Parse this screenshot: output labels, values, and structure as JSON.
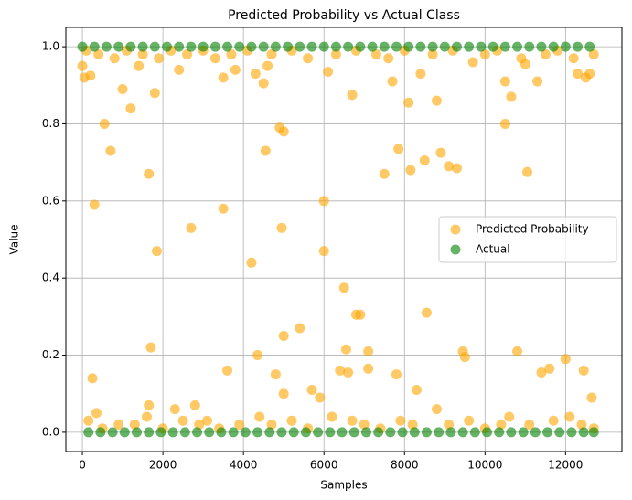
{
  "chart_data": {
    "type": "scatter",
    "title": "Predicted Probability vs Actual Class",
    "x_label": "Samples",
    "y_label": "Value",
    "xlim": [
      -410,
      13400
    ],
    "ylim": [
      -0.05,
      1.05
    ],
    "xticks": [
      0,
      2000,
      4000,
      6000,
      8000,
      10000,
      12000
    ],
    "yticks": [
      {
        "value": 0,
        "label": "0.0"
      },
      {
        "value": 0.2,
        "label": "0.2"
      },
      {
        "value": 0.4,
        "label": "0.4"
      },
      {
        "value": 0.6,
        "label": "0.6"
      },
      {
        "value": 0.8,
        "label": "0.8"
      },
      {
        "value": 1,
        "label": "1.0"
      }
    ],
    "grid": true,
    "legend": "center right",
    "series": [
      {
        "name": "Predicted Probability",
        "color": "orange",
        "x": [
          0,
          50,
          200,
          250,
          300,
          550,
          700,
          350,
          1000,
          1200,
          1400,
          1650,
          1700,
          1800,
          1850,
          1650,
          2300,
          2400,
          2700,
          2800,
          3500,
          3500,
          3600,
          3800,
          4200,
          4300,
          4350,
          4500,
          4550,
          4600,
          4800,
          4900,
          4950,
          5000,
          5000,
          5000,
          5400,
          5700,
          5900,
          6000,
          6000,
          6100,
          6400,
          6500,
          6550,
          6600,
          6700,
          6800,
          6900,
          7100,
          7100,
          7500,
          7700,
          7800,
          7850,
          8100,
          8150,
          8300,
          8400,
          8500,
          8550,
          8800,
          8900,
          9100,
          9300,
          9450,
          9500,
          10500,
          10500,
          10650,
          10800,
          11000,
          11050,
          11300,
          11400,
          11600,
          12000,
          12300,
          12450,
          12500,
          12600,
          12650,
          100,
          400,
          800,
          1100,
          1500,
          1900,
          2200,
          2600,
          3000,
          3300,
          3700,
          4100,
          4700,
          5200,
          5600,
          6300,
          6800,
          7300,
          7600,
          8000,
          8700,
          9200,
          9700,
          10000,
          10300,
          10900,
          11500,
          11800,
          12200,
          12700,
          150,
          500,
          900,
          1300,
          1600,
          2000,
          2500,
          2900,
          3100,
          3400,
          3900,
          4400,
          4700,
          5200,
          5600,
          6200,
          6700,
          7000,
          7400,
          7900,
          8200,
          8800,
          9100,
          9600,
          10000,
          10400,
          10600,
          11100,
          11700,
          12100,
          12400,
          12700
        ],
        "values": [
          0.95,
          0.92,
          0.925,
          0.14,
          0.59,
          0.8,
          0.73,
          0.05,
          0.89,
          0.84,
          0.95,
          0.67,
          0.22,
          0.88,
          0.47,
          0.07,
          0.06,
          0.94,
          0.53,
          0.07,
          0.58,
          0.92,
          0.16,
          0.94,
          0.44,
          0.93,
          0.2,
          0.905,
          0.73,
          0.95,
          0.15,
          0.79,
          0.53,
          0.78,
          0.25,
          0.1,
          0.27,
          0.11,
          0.09,
          0.6,
          0.47,
          0.935,
          0.16,
          0.375,
          0.215,
          0.155,
          0.875,
          0.305,
          0.305,
          0.21,
          0.165,
          0.67,
          0.91,
          0.15,
          0.735,
          0.855,
          0.68,
          0.11,
          0.93,
          0.705,
          0.31,
          0.86,
          0.725,
          0.69,
          0.685,
          0.21,
          0.195,
          0.8,
          0.91,
          0.87,
          0.21,
          0.955,
          0.675,
          0.91,
          0.155,
          0.165,
          0.19,
          0.93,
          0.16,
          0.92,
          0.93,
          0.09,
          0.99,
          0.98,
          0.97,
          0.99,
          0.98,
          0.97,
          0.99,
          0.98,
          0.99,
          0.97,
          0.98,
          0.99,
          0.98,
          0.99,
          0.97,
          0.98,
          0.99,
          0.98,
          0.97,
          0.99,
          0.98,
          0.99,
          0.96,
          0.98,
          0.99,
          0.97,
          0.98,
          0.99,
          0.97,
          0.98,
          0.03,
          0.01,
          0.02,
          0.02,
          0.04,
          0.01,
          0.03,
          0.02,
          0.03,
          0.01,
          0.02,
          0.04,
          0.02,
          0.03,
          0.01,
          0.04,
          0.03,
          0.02,
          0.01,
          0.03,
          0.02,
          0.06,
          0.02,
          0.03,
          0.01,
          0.02,
          0.04,
          0.02,
          0.03,
          0.04,
          0.02,
          0.01
        ]
      },
      {
        "name": "Actual",
        "color": "green",
        "x": [
          0,
          150,
          300,
          450,
          600,
          750,
          900,
          1050,
          1200,
          1350,
          1500,
          1650,
          1800,
          1950,
          2100,
          2250,
          2400,
          2550,
          2700,
          2850,
          3000,
          3150,
          3300,
          3450,
          3600,
          3750,
          3900,
          4050,
          4200,
          4350,
          4500,
          4650,
          4800,
          4950,
          5100,
          5250,
          5400,
          5550,
          5700,
          5850,
          6000,
          6150,
          6300,
          6450,
          6600,
          6750,
          6900,
          7050,
          7200,
          7350,
          7500,
          7650,
          7800,
          7950,
          8100,
          8250,
          8400,
          8550,
          8700,
          8850,
          9000,
          9150,
          9300,
          9450,
          9600,
          9750,
          9900,
          10050,
          10200,
          10350,
          10500,
          10650,
          10800,
          10950,
          11100,
          11250,
          11400,
          11550,
          11700,
          11850,
          12000,
          12150,
          12300,
          12450,
          12600,
          12700
        ],
        "values": [
          1,
          0,
          1,
          0,
          1,
          0,
          1,
          0,
          1,
          0,
          1,
          0,
          1,
          0,
          1,
          0,
          1,
          0,
          1,
          0,
          1,
          0,
          1,
          0,
          1,
          0,
          1,
          0,
          1,
          0,
          1,
          0,
          1,
          0,
          1,
          0,
          1,
          0,
          1,
          0,
          1,
          0,
          1,
          0,
          1,
          0,
          1,
          0,
          1,
          0,
          1,
          0,
          1,
          0,
          1,
          0,
          1,
          0,
          1,
          0,
          1,
          0,
          1,
          0,
          1,
          0,
          1,
          0,
          1,
          0,
          1,
          0,
          1,
          0,
          1,
          0,
          1,
          0,
          1,
          0,
          1,
          0,
          1,
          0,
          1,
          0
        ]
      }
    ]
  }
}
